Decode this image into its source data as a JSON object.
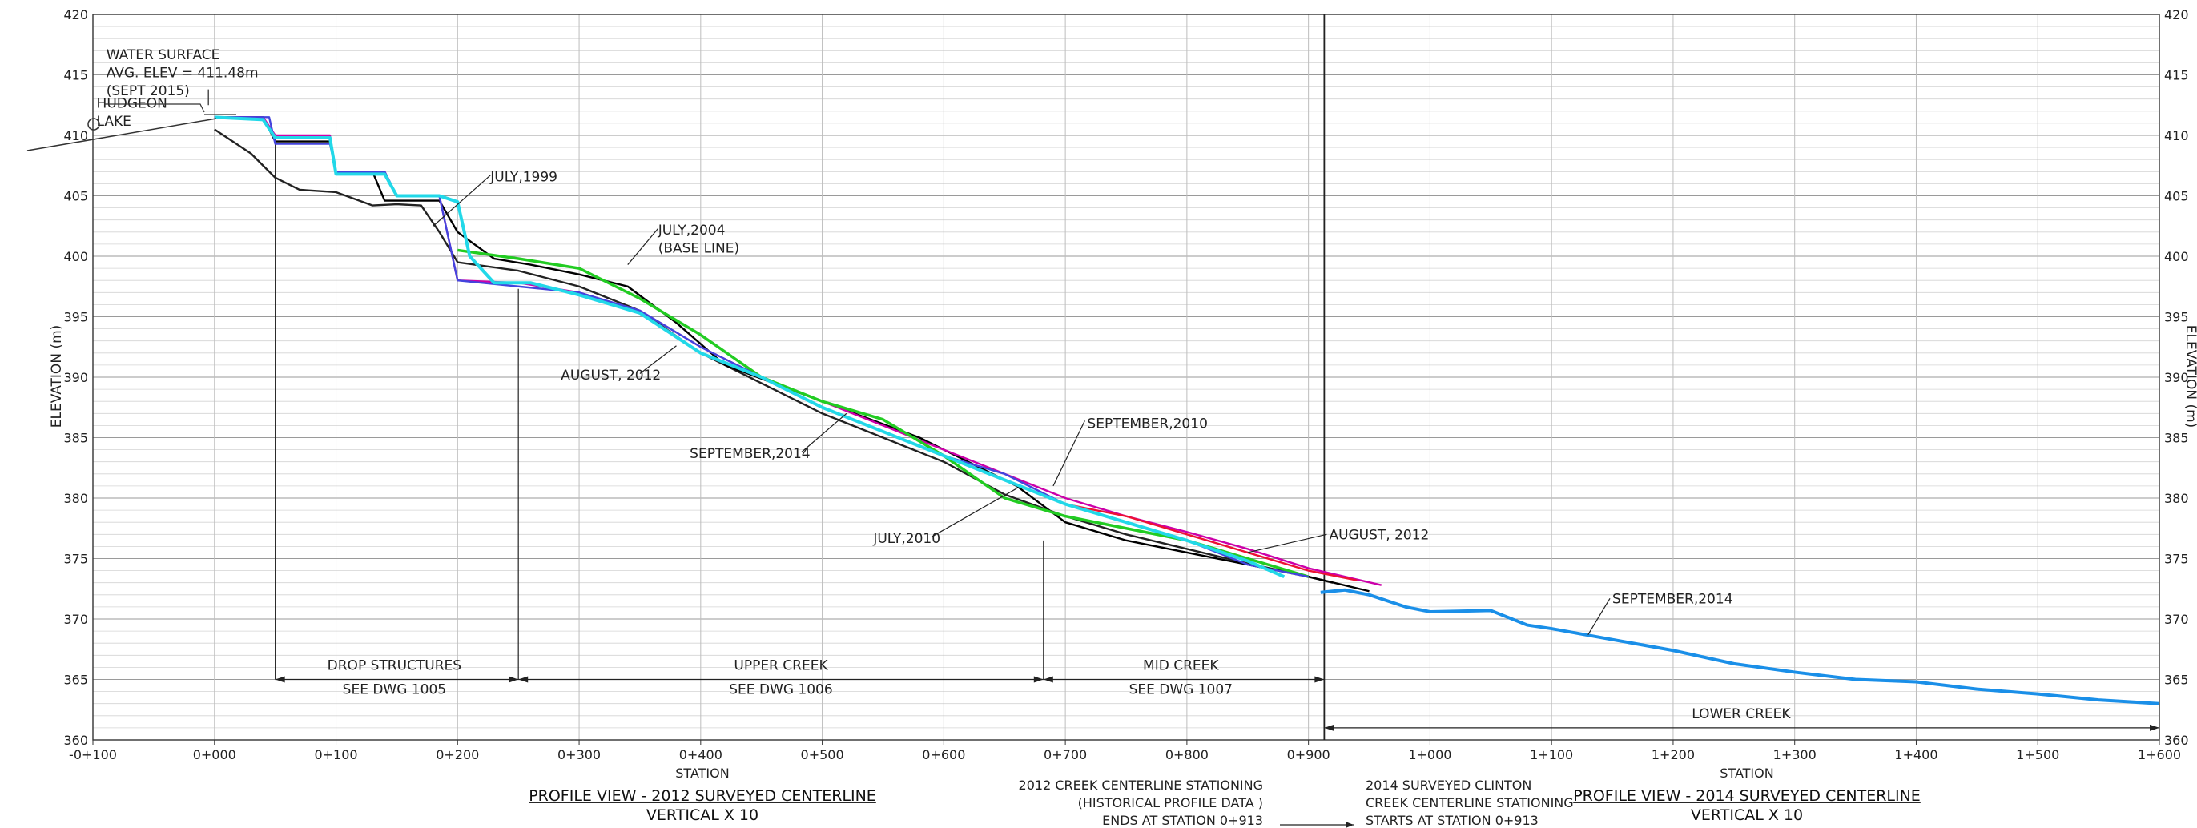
{
  "chart_data": {
    "type": "line",
    "title": "",
    "xlabel": "STATION",
    "ylabel": "ELEVATION (m)",
    "xlim": [
      -100,
      1600
    ],
    "ylim": [
      360,
      420
    ],
    "y_ticks": [
      "360",
      "365",
      "370",
      "375",
      "380",
      "385",
      "390",
      "395",
      "400",
      "405",
      "410",
      "415",
      "420"
    ],
    "x_ticks": [
      "-0+100",
      "0+000",
      "0+100",
      "0+200",
      "0+300",
      "0+400",
      "0+500",
      "0+600",
      "0+700",
      "0+800",
      "0+900",
      "1+000",
      "1+100",
      "1+200",
      "1+300",
      "1+400",
      "1+500",
      "1+600"
    ],
    "grid": true,
    "series": [
      {
        "name": "JULY,1999",
        "color": "#222222",
        "x": [
          0,
          30,
          50,
          70,
          100,
          130,
          150,
          170,
          185,
          200,
          250,
          300,
          350,
          400,
          450,
          500,
          550,
          600,
          650,
          700,
          750,
          800,
          850,
          900,
          920
        ],
        "y": [
          410.5,
          408.5,
          406.5,
          405.5,
          405.3,
          404.2,
          404.3,
          404.2,
          402.0,
          399.5,
          398.8,
          397.5,
          395.5,
          392.0,
          389.5,
          387.0,
          385.0,
          383.0,
          380.3,
          378.5,
          377.0,
          375.8,
          374.6,
          373.5,
          373.0
        ]
      },
      {
        "name": "JULY,2004 (BASE LINE)",
        "color": "#000000",
        "x": [
          0,
          40,
          50,
          95,
          100,
          130,
          140,
          160,
          185,
          200,
          230,
          260,
          300,
          340,
          380,
          420,
          460,
          500,
          540,
          580,
          620,
          660,
          700,
          750,
          800,
          850,
          900,
          950
        ],
        "y": [
          411.5,
          411.5,
          409.5,
          409.5,
          407.0,
          407.0,
          404.6,
          404.6,
          404.6,
          402.0,
          399.8,
          399.3,
          398.5,
          397.5,
          394.5,
          391.0,
          389.5,
          388.0,
          386.5,
          385.0,
          383.0,
          381.0,
          378.0,
          376.5,
          375.5,
          374.5,
          373.5,
          372.3
        ]
      },
      {
        "name": "SEPTEMBER,2010",
        "color": "#cc00aa",
        "x": [
          0,
          40,
          50,
          95,
          100,
          140,
          150,
          185,
          200,
          250,
          300,
          350,
          400,
          450,
          500,
          550,
          600,
          650,
          700,
          750,
          800,
          850,
          900,
          960
        ],
        "y": [
          411.5,
          411.5,
          410.0,
          410.0,
          407.0,
          407.0,
          405.0,
          405.0,
          398.0,
          397.8,
          397.0,
          395.5,
          392.5,
          390.0,
          388.0,
          386.0,
          384.0,
          382.0,
          380.0,
          378.5,
          377.2,
          375.8,
          374.2,
          372.8
        ]
      },
      {
        "name": "JULY,2010",
        "color": "#22cc22",
        "x": [
          200,
          250,
          300,
          350,
          400,
          450,
          500,
          550,
          600,
          650,
          700,
          750,
          800,
          850,
          900
        ],
        "y": [
          400.5,
          399.8,
          399.0,
          396.5,
          393.5,
          390.0,
          388.0,
          386.5,
          383.5,
          380.0,
          378.5,
          377.5,
          376.5,
          375.0,
          373.5
        ]
      },
      {
        "name": "AUGUST, 2012",
        "color": "#ee1133",
        "x": [
          700,
          750,
          800,
          850,
          900,
          940
        ],
        "y": [
          379.5,
          378.5,
          377.0,
          375.5,
          374.0,
          373.2
        ]
      },
      {
        "name": "AUGUST, 2012",
        "color": "#4444dd",
        "x": [
          0,
          45,
          50,
          95,
          100,
          140,
          150,
          185,
          200,
          250,
          300,
          350,
          400,
          450,
          500,
          550,
          600,
          650,
          700,
          750,
          800,
          850,
          900
        ],
        "y": [
          411.5,
          411.5,
          409.3,
          409.3,
          407.0,
          407.0,
          405.0,
          405.0,
          398.0,
          397.5,
          397.0,
          395.5,
          392.5,
          390.0,
          387.5,
          385.5,
          383.5,
          382.0,
          379.5,
          378.0,
          376.5,
          374.5,
          373.5
        ]
      },
      {
        "name": "SEPTEMBER,2014",
        "color": "#1a8fe8",
        "x": [
          910,
          930,
          950,
          980,
          1000,
          1050,
          1080,
          1100,
          1150,
          1200,
          1250,
          1300,
          1350,
          1400,
          1450,
          1500,
          1550,
          1600
        ],
        "y": [
          372.2,
          372.4,
          372.0,
          371.0,
          370.6,
          370.7,
          369.5,
          369.2,
          368.3,
          367.4,
          366.3,
          365.6,
          365.0,
          364.8,
          364.2,
          363.8,
          363.3,
          363.0
        ]
      },
      {
        "name": "SEPTEMBER,2014",
        "color": "#22d8e8",
        "x": [
          0,
          40,
          50,
          95,
          100,
          140,
          150,
          185,
          200,
          210,
          230,
          260,
          300,
          350,
          400,
          450,
          500,
          550,
          600,
          650,
          700,
          750,
          800,
          850,
          880
        ],
        "y": [
          411.5,
          411.3,
          409.8,
          409.8,
          406.8,
          406.8,
          405.0,
          405.0,
          404.5,
          400.0,
          397.8,
          397.8,
          396.8,
          395.3,
          392.0,
          390.0,
          387.5,
          385.5,
          383.5,
          381.5,
          379.5,
          378.0,
          376.5,
          374.8,
          373.5
        ]
      }
    ],
    "annotations": [
      {
        "text": "HUDGEON",
        "x": -97,
        "y": 412.3,
        "anchor": "start"
      },
      {
        "text": "LAKE",
        "x": -97,
        "y": 410.8,
        "anchor": "start"
      },
      {
        "text": "WATER SURFACE",
        "x": -89,
        "y": 416.3,
        "anchor": "start"
      },
      {
        "text": "AVG. ELEV = 411.48m",
        "x": -89,
        "y": 414.8,
        "anchor": "start"
      },
      {
        "text": "(SEPT 2015)",
        "x": -89,
        "y": 413.3,
        "anchor": "start"
      },
      {
        "text": "JULY,1999",
        "x": 227,
        "y": 406.2,
        "anchor": "start"
      },
      {
        "text": "JULY,2004",
        "x": 365,
        "y": 401.8,
        "anchor": "start"
      },
      {
        "text": "(BASE LINE)",
        "x": 365,
        "y": 400.3,
        "anchor": "start"
      },
      {
        "text": "AUGUST, 2012",
        "x": 285,
        "y": 389.8,
        "anchor": "start"
      },
      {
        "text": "SEPTEMBER,2014",
        "x": 391,
        "y": 383.3,
        "anchor": "start"
      },
      {
        "text": "SEPTEMBER,2010",
        "x": 718,
        "y": 385.8,
        "anchor": "start"
      },
      {
        "text": "JULY,2010",
        "x": 542,
        "y": 376.3,
        "anchor": "start"
      },
      {
        "text": "AUGUST, 2012",
        "x": 917,
        "y": 376.6,
        "anchor": "start"
      },
      {
        "text": "SEPTEMBER,2014",
        "x": 1150,
        "y": 371.3,
        "anchor": "start"
      },
      {
        "text": "DROP STRUCTURES",
        "x": 148,
        "y": 365.8,
        "anchor": "middle"
      },
      {
        "text": "SEE DWG 1005",
        "x": 148,
        "y": 363.8,
        "anchor": "middle"
      },
      {
        "text": "UPPER CREEK",
        "x": 466,
        "y": 365.8,
        "anchor": "middle"
      },
      {
        "text": "SEE DWG 1006",
        "x": 466,
        "y": 363.8,
        "anchor": "middle"
      },
      {
        "text": "MID CREEK",
        "x": 795,
        "y": 365.8,
        "anchor": "middle"
      },
      {
        "text": "SEE DWG 1007",
        "x": 795,
        "y": 363.8,
        "anchor": "middle"
      },
      {
        "text": "LOWER CREEK",
        "x": 1256,
        "y": 361.8,
        "anchor": "middle"
      }
    ],
    "ranges": [
      {
        "x1": 50,
        "x2": 250,
        "y": 365
      },
      {
        "x1": 250,
        "x2": 682,
        "y": 365
      },
      {
        "x1": 682,
        "x2": 913,
        "y": 365
      },
      {
        "x1": 913,
        "x2": 1600,
        "y": 361
      }
    ],
    "verticals": [
      {
        "x": 50,
        "y1": 365,
        "y2": 409.5
      },
      {
        "x": 250,
        "y1": 365,
        "y2": 397.3
      },
      {
        "x": 682,
        "y1": 365,
        "y2": 376.5
      },
      {
        "x": 913,
        "y1": 420,
        "y2": 360
      }
    ],
    "footer_left": {
      "station_label": "STATION",
      "title": "PROFILE VIEW - 2012 SURVEYED CENTERLINE",
      "subtitle": "VERTICAL X 10"
    },
    "footer_right": {
      "station_label": "STATION",
      "title": "PROFILE VIEW - 2014 SURVEYED CENTERLINE",
      "subtitle": "VERTICAL X 10"
    },
    "note_left": [
      "2012 CREEK CENTERLINE STATIONING",
      "(HISTORICAL PROFILE DATA )",
      "ENDS AT STATION 0+913"
    ],
    "note_right": [
      "2014 SURVEYED CLINTON",
      "CREEK CENTERLINE STATIONING",
      "STARTS AT STATION 0+913"
    ]
  }
}
